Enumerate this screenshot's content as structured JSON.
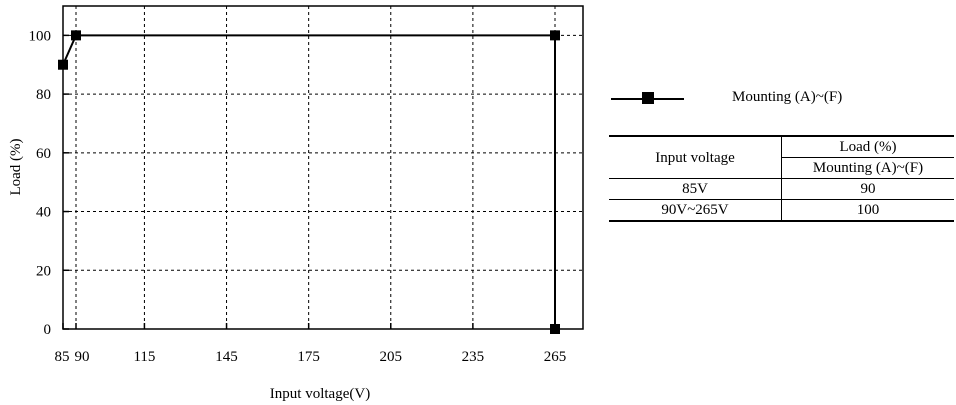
{
  "chart_data": {
    "type": "line",
    "xlabel": "Input voltage(V)",
    "ylabel": "Load (%)",
    "xlim": [
      85,
      272
    ],
    "ylim": [
      0,
      110
    ],
    "xticks": [
      85,
      90,
      115,
      145,
      175,
      205,
      235,
      265
    ],
    "xtick_labels": [
      "85",
      "90",
      "115",
      "145",
      "175",
      "205",
      "235",
      "265"
    ],
    "yticks": [
      0,
      20,
      40,
      60,
      80,
      100
    ],
    "ytick_labels": [
      "0",
      "20",
      "40",
      "60",
      "80",
      "100"
    ],
    "grid": true,
    "grid_style": "dotted",
    "legend_position": "right",
    "series": [
      {
        "name": "Mounting (A)~(F)",
        "marker": "square",
        "color": "#000000",
        "x": [
          85,
          90,
          265,
          265
        ],
        "y": [
          90,
          100,
          100,
          0
        ]
      }
    ]
  },
  "legend": {
    "label": "Mounting (A)~(F)"
  },
  "table": {
    "header_col": "Input voltage",
    "header_group": "Load (%)",
    "header_sub": "Mounting (A)~(F)",
    "rows": [
      {
        "voltage": "85V",
        "load": "90"
      },
      {
        "voltage": "90V~265V",
        "load": "100"
      }
    ]
  }
}
